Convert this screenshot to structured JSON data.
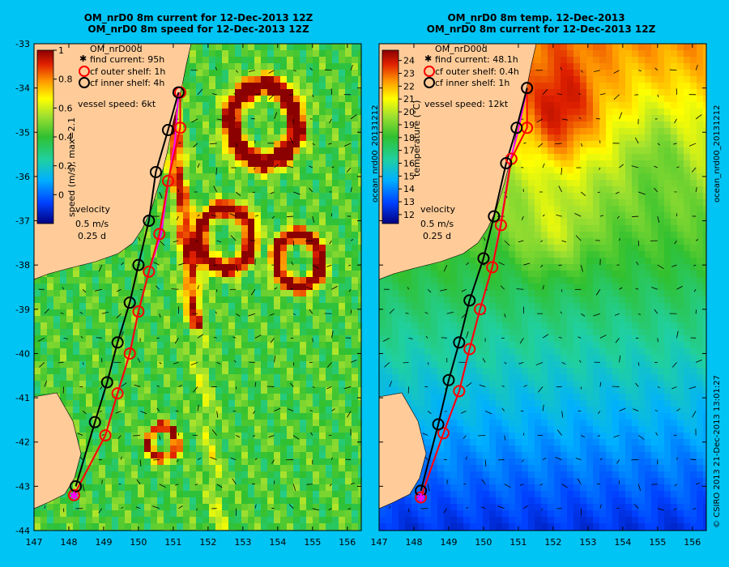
{
  "figure": {
    "copyright": "© CSIRO 2013   21-Dec-2013 13:01:27"
  },
  "chart_data": [
    {
      "type": "heatmap",
      "title_line1": "OM_nrD0 8m current for 12-Dec-2013 12Z",
      "title_line2": "OM_nrD0 8m speed for 12-Dec-2013 12Z",
      "field": "speed",
      "xlim": [
        147,
        156.4
      ],
      "ylim": [
        -44,
        -33
      ],
      "x_ticks": [
        "147",
        "148",
        "149",
        "150",
        "151",
        "152",
        "153",
        "154",
        "155",
        "156"
      ],
      "y_ticks": [
        "-33",
        "-34",
        "-35",
        "-36",
        "-37",
        "-38",
        "-39",
        "-40",
        "-41",
        "-42",
        "-43",
        "-44"
      ],
      "colorbar": {
        "label": "speed (m/s),  max=2.1",
        "ticks": [
          "1",
          "0.8",
          "0.6",
          "0.4",
          "0.2",
          "0"
        ],
        "range": [
          -0.2,
          1.0
        ]
      },
      "legend": {
        "model": "OM_nrD00d",
        "find_current": "find current: 95h",
        "outer_shelf": "cf outer shelf: 1h",
        "inner_shelf": "cf inner shelf: 4h",
        "vessel_speed": "vessel speed: 6kt",
        "velocity_label": "velocity",
        "velocity_scale": "0.5 m/s",
        "velocity_time": "0.25 d"
      },
      "route_inner": [
        [
          148.2,
          -43.0
        ],
        [
          148.75,
          -41.55
        ],
        [
          149.1,
          -40.65
        ],
        [
          149.4,
          -39.75
        ],
        [
          149.75,
          -38.85
        ],
        [
          150.0,
          -38.0
        ],
        [
          150.3,
          -37.0
        ],
        [
          150.5,
          -35.9
        ],
        [
          150.85,
          -34.95
        ],
        [
          151.15,
          -34.1
        ]
      ],
      "route_outer": [
        [
          148.15,
          -43.2
        ],
        [
          149.05,
          -41.85
        ],
        [
          149.4,
          -40.9
        ],
        [
          149.75,
          -40.0
        ],
        [
          150.0,
          -39.05
        ],
        [
          150.3,
          -38.15
        ],
        [
          150.6,
          -37.3
        ],
        [
          150.85,
          -36.1
        ],
        [
          151.2,
          -34.9
        ],
        [
          151.2,
          -34.1
        ]
      ],
      "route_find": [
        [
          148.15,
          -43.2
        ],
        [
          149.05,
          -41.85
        ],
        [
          149.4,
          -40.9
        ],
        [
          149.75,
          -40.0
        ],
        [
          150.0,
          -39.05
        ],
        [
          150.3,
          -38.15
        ],
        [
          150.65,
          -37.3
        ],
        [
          150.85,
          -36.15
        ],
        [
          151.05,
          -35.2
        ],
        [
          151.15,
          -34.1
        ]
      ]
    },
    {
      "type": "heatmap",
      "title_line1": "OM_nrD0 8m temp. 12-Dec-2013",
      "title_line2": "OM_nrD0 8m current for 12-Dec-2013 12Z",
      "field": "temperature",
      "side_label": "ocean_nrd00_20131212",
      "xlim": [
        147,
        156.4
      ],
      "ylim": [
        -44,
        -33
      ],
      "x_ticks": [
        "147",
        "148",
        "149",
        "150",
        "151",
        "152",
        "153",
        "154",
        "155",
        "156"
      ],
      "colorbar": {
        "label": "temperature (°C)",
        "ticks": [
          "24",
          "23",
          "22",
          "21",
          "20",
          "19",
          "18",
          "17",
          "16",
          "15",
          "14",
          "13",
          "12"
        ],
        "range": [
          11.3,
          24.8
        ]
      },
      "legend": {
        "model": "OM_nrD00d",
        "find_current": "find current: 48.1h",
        "outer_shelf": "cf outer shelf: 0.4h",
        "inner_shelf": "cf inner shelf: 1h",
        "vessel_speed": "vessel speed: 12kt",
        "velocity_label": "velocity",
        "velocity_scale": "0.5 m/s",
        "velocity_time": "0.25 d"
      },
      "route_inner": [
        [
          148.2,
          -43.1
        ],
        [
          148.7,
          -41.6
        ],
        [
          149.0,
          -40.6
        ],
        [
          149.3,
          -39.75
        ],
        [
          149.6,
          -38.8
        ],
        [
          150.0,
          -37.85
        ],
        [
          150.3,
          -36.9
        ],
        [
          150.65,
          -35.7
        ],
        [
          150.95,
          -34.9
        ],
        [
          151.25,
          -34.0
        ]
      ],
      "route_outer": [
        [
          148.2,
          -43.25
        ],
        [
          148.85,
          -41.8
        ],
        [
          149.3,
          -40.85
        ],
        [
          149.6,
          -39.9
        ],
        [
          149.9,
          -39.0
        ],
        [
          150.25,
          -38.05
        ],
        [
          150.5,
          -37.1
        ],
        [
          150.8,
          -35.6
        ],
        [
          151.25,
          -34.9
        ],
        [
          151.25,
          -34.0
        ]
      ],
      "route_find": [
        [
          148.2,
          -43.25
        ],
        [
          148.85,
          -41.8
        ],
        [
          149.3,
          -40.85
        ],
        [
          149.6,
          -39.9
        ],
        [
          149.9,
          -39.0
        ],
        [
          150.25,
          -38.05
        ],
        [
          150.5,
          -37.05
        ],
        [
          150.8,
          -35.55
        ],
        [
          151.0,
          -34.95
        ],
        [
          151.25,
          -34.0
        ]
      ]
    }
  ],
  "colors": {
    "background": "#00c4f4",
    "land": "#ffcc99",
    "find_route": "#ff00ff",
    "outer_route": "#ff0000",
    "inner_route": "#000000"
  }
}
